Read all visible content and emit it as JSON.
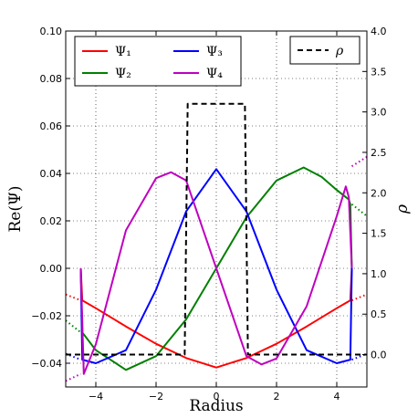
{
  "chart_data": {
    "type": "line",
    "xlabel": "Radius",
    "ylabel": "Re(Ψ)",
    "ylabel_right": "ρ",
    "xlim": [
      -5,
      5
    ],
    "ylim": [
      -0.05,
      0.1
    ],
    "ylim_right": [
      -0.4,
      4.0
    ],
    "grid": true,
    "grid_style": "dotted",
    "x_ticks": [
      -4,
      -2,
      0,
      2,
      4
    ],
    "x_tick_labels": [
      "−4",
      "−2",
      "0",
      "2",
      "4"
    ],
    "y_ticks": [
      -0.04,
      -0.02,
      0.0,
      0.02,
      0.04,
      0.06,
      0.08,
      0.1
    ],
    "y_tick_labels": [
      "−0.04",
      "−0.02",
      "0.00",
      "0.02",
      "0.04",
      "0.06",
      "0.08",
      "0.10"
    ],
    "y_ticks_right": [
      0.0,
      0.5,
      1.0,
      1.5,
      2.0,
      2.5,
      3.0,
      3.5,
      4.0
    ],
    "y_tick_labels_right": [
      "0.0",
      "0.5",
      "1.0",
      "1.5",
      "2.0",
      "2.5",
      "3.0",
      "3.5",
      "4.0"
    ],
    "legend_left": {
      "placement": "top-left",
      "columns": 2,
      "entries": [
        "Ψ₁",
        "Ψ₂",
        "Ψ₃",
        "Ψ₄"
      ]
    },
    "legend_right": {
      "placement": "top-right",
      "entries": [
        "ρ"
      ]
    },
    "series": [
      {
        "name": "Ψ₁",
        "color": "#ff0000",
        "axis": "left",
        "x": [
          -4.5,
          -4.45,
          -4.0,
          -3.0,
          -2.0,
          -1.0,
          0.0,
          1.0,
          2.0,
          3.0,
          4.0,
          4.45,
          4.5
        ],
        "y": [
          0.0,
          -0.0135,
          -0.0168,
          -0.0245,
          -0.0318,
          -0.0378,
          -0.0418,
          -0.0378,
          -0.0318,
          -0.0245,
          -0.0168,
          -0.0135,
          0.0
        ],
        "outer_left": {
          "x": [
            -5.0,
            -4.5
          ],
          "y": [
            -0.011,
            -0.0135
          ]
        },
        "outer_right": {
          "x": [
            4.5,
            5.0
          ],
          "y": [
            -0.0135,
            -0.011
          ]
        }
      },
      {
        "name": "Ψ₂",
        "color": "#008000",
        "axis": "left",
        "x": [
          -4.5,
          -4.45,
          -4.0,
          -3.0,
          -2.0,
          -1.0,
          0.0,
          1.0,
          2.0,
          2.9,
          3.5,
          4.0,
          4.4,
          4.45,
          4.5
        ],
        "y": [
          0.0,
          -0.027,
          -0.0345,
          -0.0428,
          -0.037,
          -0.0215,
          0.0,
          0.0215,
          0.037,
          0.0425,
          0.0385,
          0.033,
          0.029,
          0.027,
          0.0
        ],
        "outer_left": {
          "x": [
            -5.0,
            -4.5
          ],
          "y": [
            -0.022,
            -0.027
          ]
        },
        "outer_right": {
          "x": [
            4.5,
            5.0
          ],
          "y": [
            0.027,
            0.022
          ]
        }
      },
      {
        "name": "Ψ₃",
        "color": "#0000ff",
        "axis": "left",
        "x": [
          -4.5,
          -4.45,
          -4.0,
          -3.0,
          -2.0,
          -1.0,
          0.0,
          1.0,
          2.0,
          3.0,
          4.0,
          4.45,
          4.5
        ],
        "y": [
          0.0,
          -0.0385,
          -0.04,
          -0.0345,
          -0.009,
          0.024,
          0.0418,
          0.024,
          -0.009,
          -0.0345,
          -0.04,
          -0.0385,
          0.0
        ],
        "outer_left": {
          "x": [
            -5.0,
            -4.5
          ],
          "y": [
            -0.036,
            -0.0385
          ]
        },
        "outer_right": {
          "x": [
            4.5,
            5.0
          ],
          "y": [
            -0.0385,
            -0.036
          ]
        }
      },
      {
        "name": "Ψ₄",
        "color": "#bf00bf",
        "axis": "left",
        "x": [
          -4.5,
          -4.4,
          -4.0,
          -3.0,
          -2.0,
          -1.5,
          -1.0,
          0.0,
          1.0,
          1.5,
          2.0,
          3.0,
          4.0,
          4.3,
          4.4,
          4.5
        ],
        "y": [
          0.0,
          -0.0445,
          -0.032,
          0.016,
          0.038,
          0.0405,
          0.037,
          0.0,
          -0.037,
          -0.0405,
          -0.038,
          -0.016,
          0.022,
          0.0345,
          0.03,
          0.0
        ],
        "outer_left": {
          "x": [
            -5.0,
            -4.5
          ],
          "y": [
            -0.0475,
            -0.0445
          ]
        },
        "outer_right": {
          "x": [
            4.5,
            5.0
          ],
          "y": [
            0.043,
            0.047
          ]
        }
      },
      {
        "name": "ρ",
        "color": "#000000",
        "axis": "right",
        "dashed": true,
        "x": [
          -5.0,
          -1.05,
          -0.95,
          0.95,
          1.05,
          5.0
        ],
        "y": [
          0.0,
          0.0,
          3.1,
          3.1,
          0.0,
          0.0
        ]
      }
    ]
  }
}
